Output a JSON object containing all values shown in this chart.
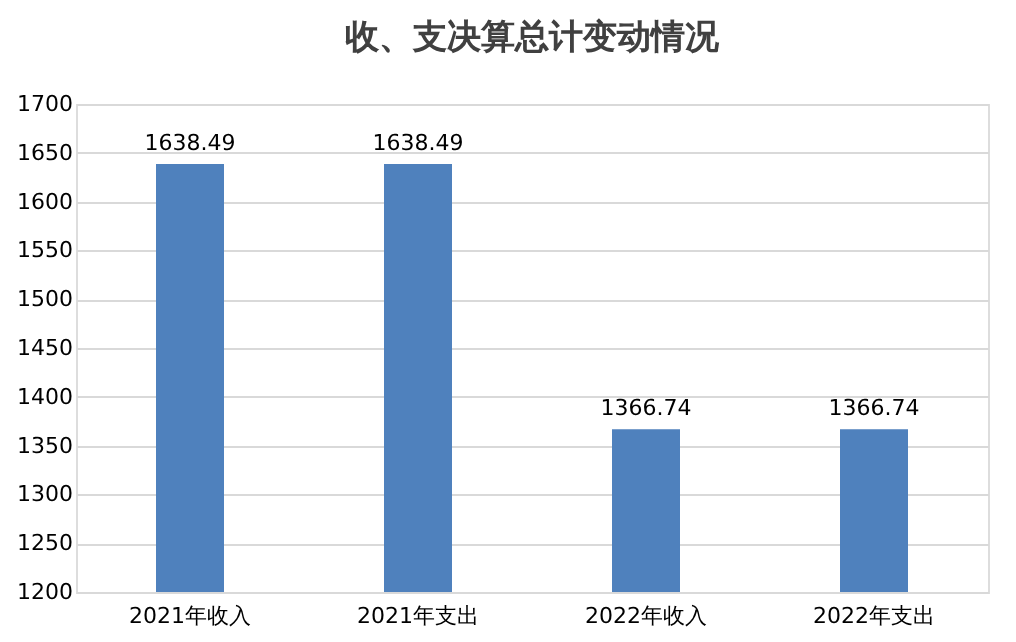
{
  "chart_data": {
    "type": "bar",
    "title": "收、支决算总计变动情况",
    "categories": [
      "2021年收入",
      "2021年支出",
      "2022年收入",
      "2022年支出"
    ],
    "values": [
      1638.49,
      1638.49,
      1366.74,
      1366.74
    ],
    "color": "#4f81bd",
    "ylim": [
      1200,
      1700
    ],
    "yticks": [
      1200,
      1250,
      1300,
      1350,
      1400,
      1450,
      1500,
      1550,
      1600,
      1650,
      1700
    ],
    "grid": "y",
    "data_labels": true
  }
}
